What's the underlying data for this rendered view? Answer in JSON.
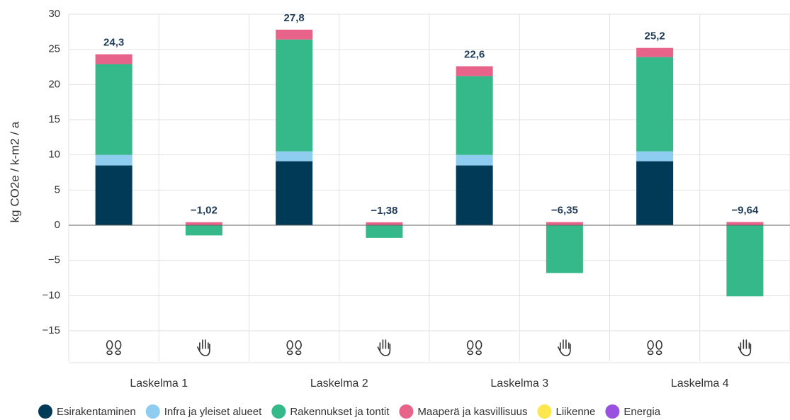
{
  "chart_data": {
    "type": "stacked_bar",
    "y_label": "kg CO2e / k-m2 / a",
    "categories": [
      null,
      null,
      null,
      null,
      null,
      null,
      null,
      null
    ],
    "groups": [
      "Laskelma 1",
      "Laskelma 2",
      "Laskelma 3",
      "Laskelma 4"
    ],
    "series": [
      {
        "name": "Esirakentaminen",
        "color": "#003a57",
        "values": [
          8.5,
          0,
          9.1,
          0,
          8.5,
          0,
          9.1,
          0
        ]
      },
      {
        "name": "Infra ja yleiset alueet",
        "color": "#8ecdf0",
        "values": [
          1.5,
          0,
          1.4,
          0,
          1.5,
          0,
          1.4,
          0
        ]
      },
      {
        "name": "Rakennukset ja tontit",
        "color": "#36b98a",
        "values": [
          12.9,
          -1.45,
          15.9,
          -1.8,
          11.2,
          -6.8,
          13.4,
          -10.1
        ]
      },
      {
        "name": "Maaperä ja kasvillisuus",
        "color": "#e8638a",
        "values": [
          1.4,
          0.43,
          1.4,
          0.42,
          1.4,
          0.45,
          1.3,
          0.46
        ]
      },
      {
        "name": "Liikenne",
        "color": "#fde74c",
        "values": [
          0,
          0,
          0,
          0,
          0,
          0,
          0,
          0
        ]
      },
      {
        "name": "Energia",
        "color": "#9b51e0",
        "values": [
          0,
          0,
          0,
          0,
          0,
          0,
          0,
          0
        ]
      }
    ],
    "totals": {
      "values": [
        24.3,
        -1.02,
        27.8,
        -1.38,
        22.6,
        -6.35,
        25.2,
        -9.64
      ],
      "value_labels": [
        "24,3",
        "−1,02",
        "27,8",
        "−1,38",
        "22,6",
        "−6,35",
        "25,2",
        "−9,64"
      ]
    },
    "ylim": [
      -15,
      30
    ],
    "yticks": [
      {
        "value": -15,
        "label": "−15"
      },
      {
        "value": -10,
        "label": "−10"
      },
      {
        "value": -5,
        "label": "−5"
      },
      0,
      5,
      10,
      15,
      20,
      25,
      30
    ],
    "grid": true
  }
}
